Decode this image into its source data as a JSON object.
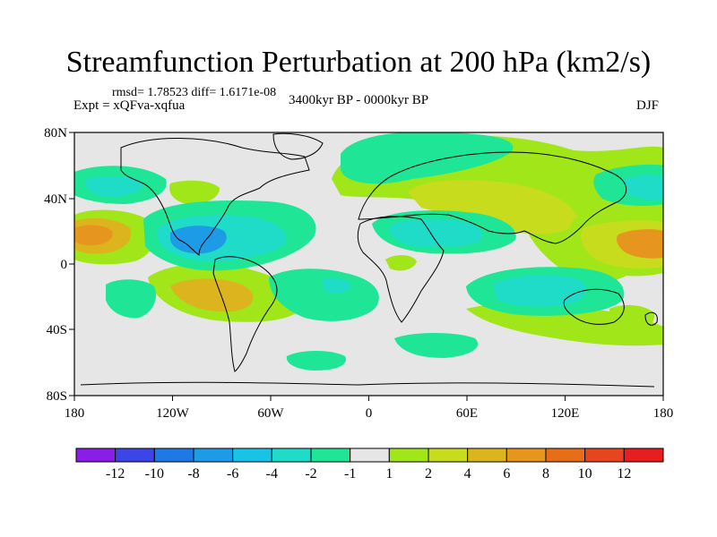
{
  "title": "Streamfunction Perturbation at 200 hPa (km2/s)",
  "stats_text": "rmsd= 1.78523 diff= 1.6171e-08",
  "experiment": "Expt = xQFva-xqfua",
  "period": "3400kyr BP - 0000kyr BP",
  "season": "DJF",
  "lat_ticks": [
    "80N",
    "40N",
    "0",
    "40S",
    "80S"
  ],
  "lon_ticks": [
    "180",
    "120W",
    "60W",
    "0",
    "60E",
    "120E",
    "180"
  ],
  "colorbar": {
    "labels": [
      "-12",
      "-10",
      "-8",
      "-6",
      "-4",
      "-2",
      "-1",
      "1",
      "2",
      "4",
      "6",
      "8",
      "10",
      "12"
    ],
    "colors": [
      "#8a1ee6",
      "#3c46e6",
      "#1e78e6",
      "#1e9be6",
      "#19c3e6",
      "#1edcc8",
      "#1ee696",
      "#e6e6e6",
      "#a0e619",
      "#c8dc1e",
      "#dcb41e",
      "#e6961e",
      "#e66e19",
      "#e6461e",
      "#e61e1e"
    ]
  },
  "colors": {
    "land_outline": "#000000",
    "background": "#e6e6e6"
  }
}
